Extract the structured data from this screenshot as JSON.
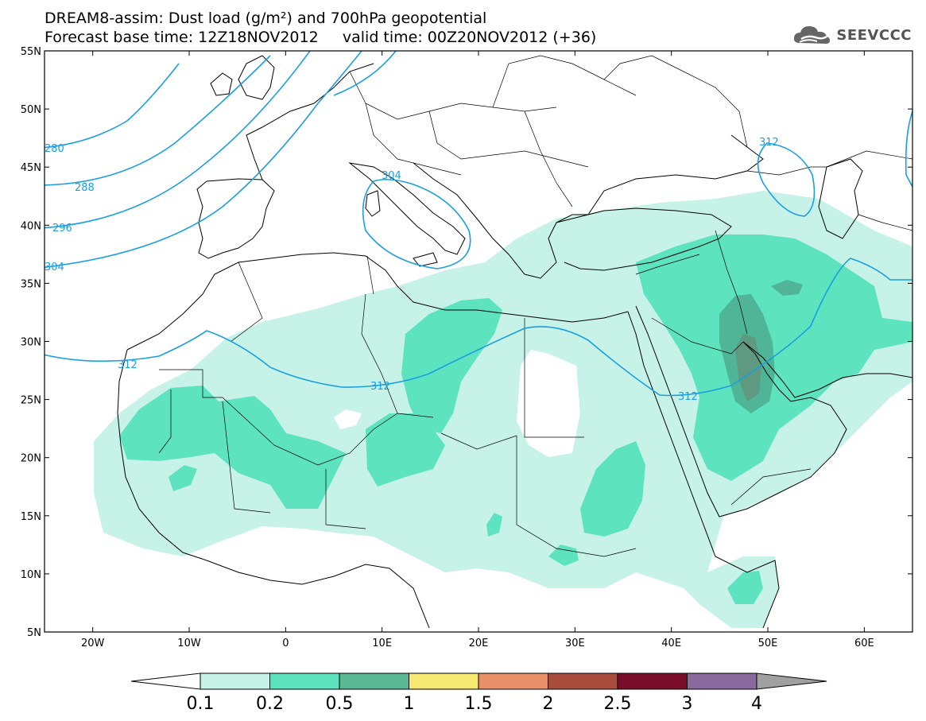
{
  "title": {
    "line1": "DREAM8-assim: Dust load (g/m²) and 700hPa geopotential",
    "line2": "Forecast base time: 12Z18NOV2012     valid time: 00Z20NOV2012 (+36)"
  },
  "logo": {
    "text": "SEEVCCC",
    "icon": "cloud-icon"
  },
  "map": {
    "lon_range": [
      -25,
      65
    ],
    "lat_range": [
      5,
      55
    ],
    "lat_ticks": [
      {
        "value": 55,
        "label": "55N"
      },
      {
        "value": 50,
        "label": "50N"
      },
      {
        "value": 45,
        "label": "45N"
      },
      {
        "value": 40,
        "label": "40N"
      },
      {
        "value": 35,
        "label": "35N"
      },
      {
        "value": 30,
        "label": "30N"
      },
      {
        "value": 25,
        "label": "25N"
      },
      {
        "value": 20,
        "label": "20N"
      },
      {
        "value": 15,
        "label": "15N"
      },
      {
        "value": 10,
        "label": "10N"
      },
      {
        "value": 5,
        "label": "5N"
      }
    ],
    "lon_ticks": [
      {
        "value": -20,
        "label": "20W"
      },
      {
        "value": -10,
        "label": "10W"
      },
      {
        "value": 0,
        "label": "0"
      },
      {
        "value": 10,
        "label": "10E"
      },
      {
        "value": 20,
        "label": "20E"
      },
      {
        "value": 30,
        "label": "30E"
      },
      {
        "value": 40,
        "label": "40E"
      },
      {
        "value": 50,
        "label": "50E"
      },
      {
        "value": 60,
        "label": "60E"
      }
    ],
    "contour_labels": [
      "280",
      "288",
      "296",
      "304",
      "304",
      "312",
      "312",
      "312",
      "312"
    ],
    "contour_color": "#1a9fe0",
    "dust_colors": {
      "light": "#c6f2e8",
      "medium": "#5ee3bf",
      "dark": "#4fb596",
      "darker": "#5f9981"
    }
  },
  "colorbar": {
    "labels": [
      "0.1",
      "0.2",
      "0.5",
      "1",
      "1.5",
      "2",
      "2.5",
      "3",
      "4"
    ],
    "colors": [
      "#ffffff",
      "#c6f2e8",
      "#5ee3bf",
      "#5bb896",
      "#f5e873",
      "#e8906a",
      "#a84c3e",
      "#7a0d2a",
      "#8a6a9e",
      "#a0a0a0"
    ]
  }
}
